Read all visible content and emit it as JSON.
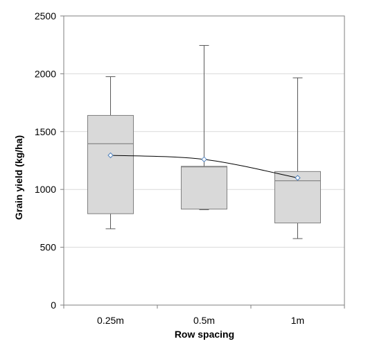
{
  "chart_data": {
    "type": "box",
    "xlabel": "Row spacing",
    "ylabel": "Grain yield (kg/ha)",
    "categories": [
      "0.25m",
      "0.5m",
      "1m"
    ],
    "ylim": [
      0,
      2500
    ],
    "yticks": [
      0,
      500,
      1000,
      1500,
      2000,
      2500
    ],
    "grid": true,
    "legend": "none",
    "boxes": [
      {
        "category": "0.25m",
        "min": 660,
        "q1": 790,
        "median": 1395,
        "q3": 1640,
        "max": 1975,
        "mean": 1295
      },
      {
        "category": "0.5m",
        "min": 825,
        "q1": 830,
        "median": 1195,
        "q3": 1200,
        "max": 2245,
        "mean": 1260
      },
      {
        "category": "1m",
        "min": 575,
        "q1": 710,
        "median": 1075,
        "q3": 1155,
        "max": 1965,
        "mean": 1100
      }
    ],
    "mean_series": {
      "values": [
        1295,
        1260,
        1100
      ],
      "smoothed": true
    },
    "colors": {
      "box_fill": "#d9d9d9",
      "box_stroke": "#7f7f7f",
      "whisker": "#595959",
      "gridline": "#d9d9d9",
      "plot_border": "#7f7f7f",
      "mean_line": "#000000",
      "mean_marker_stroke": "#4f81bd",
      "mean_marker_fill": "#ffffff"
    }
  }
}
